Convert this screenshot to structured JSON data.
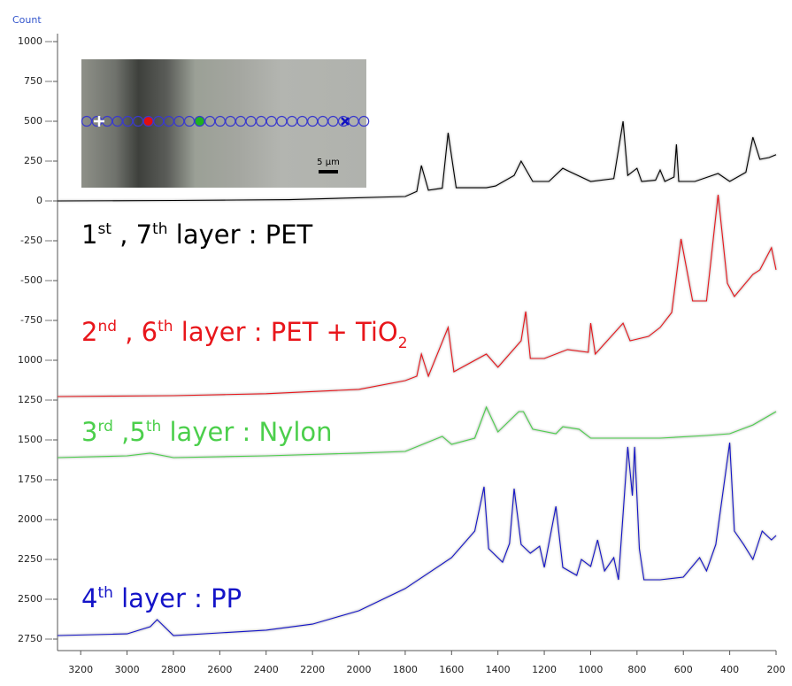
{
  "chart_data": {
    "type": "line",
    "y_label": "Count",
    "xlim": [
      3300,
      200
    ],
    "ylim": [
      -2800,
      1050
    ],
    "xticks": [
      3200,
      3000,
      2800,
      2600,
      2400,
      2200,
      2000,
      1800,
      1600,
      1400,
      1200,
      1000,
      800,
      600,
      400,
      200
    ],
    "yticks": [
      1000,
      750,
      500,
      250,
      0,
      -250,
      -500,
      -750,
      {
        "value": -1000,
        "label": "1000"
      },
      {
        "value": -1250,
        "label": "1250"
      },
      {
        "value": -1500,
        "label": "1500"
      },
      {
        "value": -1750,
        "label": "1750"
      },
      {
        "value": -2000,
        "label": "2000"
      },
      {
        "value": -2250,
        "label": "2250"
      },
      {
        "value": -2500,
        "label": "2500"
      },
      {
        "value": -2750,
        "label": "2750"
      }
    ],
    "inset": {
      "scale_label": "5 µm"
    },
    "series": [
      {
        "name": [
          {
            "text": "1"
          },
          {
            "text": "st",
            "pos": "sup"
          },
          {
            "text": " , 7"
          },
          {
            "text": "th",
            "pos": "sup"
          },
          {
            "text": " layer : PET"
          }
        ],
        "color": "#000000",
        "x": [
          3300,
          2800,
          2300,
          1800,
          1750,
          1730,
          1700,
          1640,
          1615,
          1580,
          1450,
          1410,
          1330,
          1300,
          1250,
          1180,
          1120,
          1100,
          1000,
          900,
          860,
          840,
          800,
          780,
          720,
          700,
          680,
          640,
          630,
          620,
          550,
          450,
          400,
          330,
          300,
          270,
          230,
          200
        ],
        "values": [
          0,
          3,
          8,
          28,
          60,
          222,
          67,
          80,
          428,
          83,
          83,
          94,
          160,
          250,
          122,
          122,
          205,
          190,
          122,
          140,
          500,
          160,
          205,
          122,
          130,
          194,
          122,
          150,
          355,
          122,
          122,
          172,
          122,
          180,
          400,
          261,
          272,
          290
        ]
      },
      {
        "name": [
          {
            "text": "2"
          },
          {
            "text": "nd",
            "pos": "sup"
          },
          {
            "text": " , 6"
          },
          {
            "text": "th",
            "pos": "sup"
          },
          {
            "text": " layer : PET + TiO"
          },
          {
            "text": "2",
            "pos": "sub"
          }
        ],
        "color": "#e8161b",
        "x": [
          3300,
          2800,
          2400,
          2000,
          1800,
          1750,
          1730,
          1700,
          1615,
          1590,
          1450,
          1400,
          1300,
          1280,
          1260,
          1200,
          1100,
          1010,
          1000,
          980,
          860,
          830,
          750,
          700,
          650,
          610,
          560,
          500,
          450,
          410,
          380,
          300,
          270,
          220,
          200
        ],
        "values": [
          -1228,
          -1222,
          -1210,
          -1183,
          -1128,
          -1100,
          -961,
          -1100,
          -794,
          -1072,
          -961,
          -1044,
          -878,
          -694,
          -989,
          -989,
          -933,
          -950,
          -767,
          -961,
          -767,
          -878,
          -850,
          -794,
          -700,
          -239,
          -628,
          -628,
          39,
          -517,
          -600,
          -461,
          -433,
          -294,
          -433
        ]
      },
      {
        "name": [
          {
            "text": "3"
          },
          {
            "text": "rd",
            "pos": "sup"
          },
          {
            "text": " ,5"
          },
          {
            "text": "th",
            "pos": "sup"
          },
          {
            "text": " layer : Nylon"
          }
        ],
        "color": "#4ccf4c",
        "x": [
          3300,
          3000,
          2900,
          2800,
          2400,
          2000,
          1800,
          1640,
          1600,
          1500,
          1450,
          1400,
          1310,
          1290,
          1250,
          1150,
          1120,
          1050,
          1000,
          900,
          700,
          500,
          400,
          300,
          200
        ],
        "values": [
          -1611,
          -1600,
          -1583,
          -1611,
          -1600,
          -1583,
          -1572,
          -1478,
          -1528,
          -1489,
          -1294,
          -1450,
          -1322,
          -1322,
          -1433,
          -1461,
          -1417,
          -1433,
          -1489,
          -1489,
          -1489,
          -1472,
          -1461,
          -1406,
          -1322
        ]
      },
      {
        "name": [
          {
            "text": "4"
          },
          {
            "text": "th",
            "pos": "sup"
          },
          {
            "text": " layer : PP"
          }
        ],
        "color": "#1414c8",
        "x": [
          3300,
          3000,
          2900,
          2870,
          2800,
          2600,
          2400,
          2200,
          2000,
          1800,
          1600,
          1500,
          1460,
          1440,
          1380,
          1350,
          1330,
          1300,
          1260,
          1220,
          1200,
          1150,
          1120,
          1060,
          1040,
          1000,
          970,
          940,
          900,
          880,
          840,
          820,
          810,
          790,
          770,
          700,
          600,
          530,
          500,
          460,
          400,
          380,
          340,
          300,
          260,
          220,
          200
        ],
        "values": [
          -2728,
          -2717,
          -2672,
          -2628,
          -2728,
          -2711,
          -2694,
          -2656,
          -2572,
          -2433,
          -2239,
          -2072,
          -1794,
          -2183,
          -2267,
          -2150,
          -1806,
          -2156,
          -2211,
          -2167,
          -2300,
          -1917,
          -2300,
          -2350,
          -2250,
          -2294,
          -2128,
          -2322,
          -2239,
          -2378,
          -1544,
          -1850,
          -1544,
          -2183,
          -2378,
          -2378,
          -2361,
          -2239,
          -2322,
          -2156,
          -1517,
          -2072,
          -2156,
          -2250,
          -2072,
          -2128,
          -2100
        ]
      }
    ]
  }
}
